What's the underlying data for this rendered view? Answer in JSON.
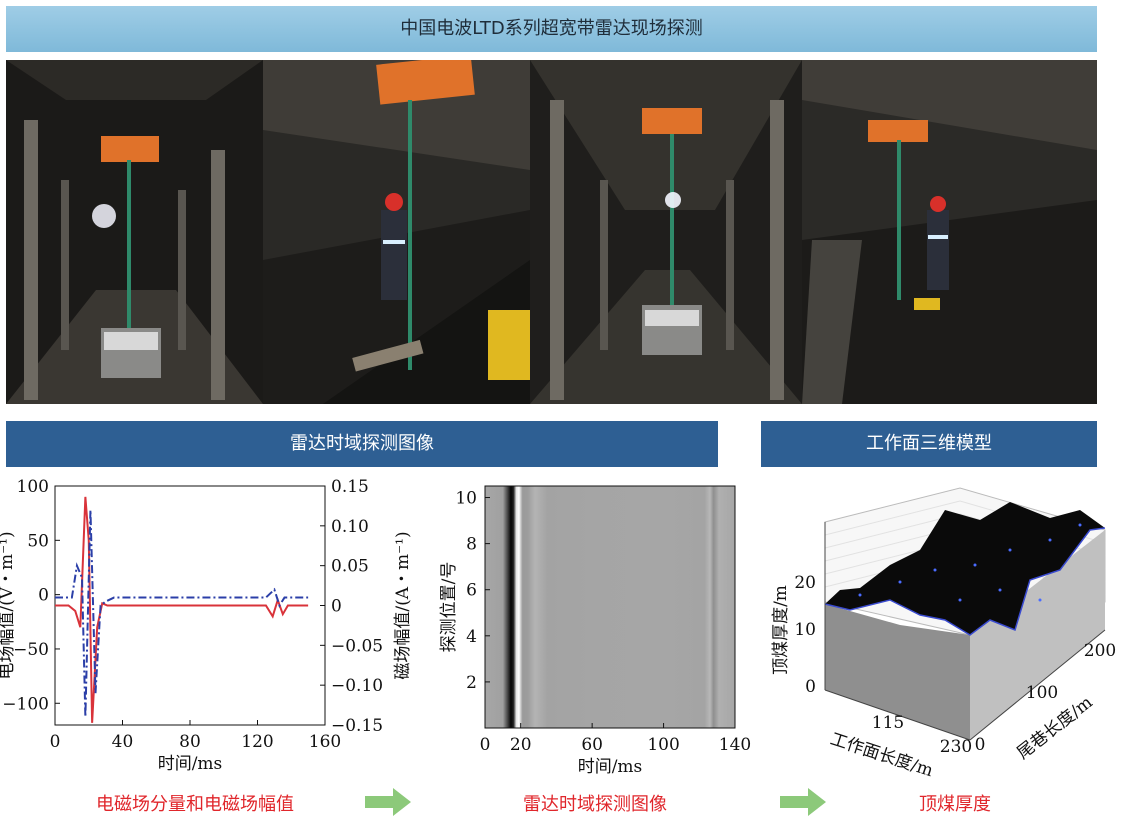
{
  "banner": {
    "title": "中国电波LTD系列超宽带雷达现场探测"
  },
  "photos": [
    {
      "name": "tunnel-photo-1"
    },
    {
      "name": "tunnel-photo-2"
    },
    {
      "name": "tunnel-photo-3"
    },
    {
      "name": "tunnel-photo-4"
    }
  ],
  "sections": {
    "radar_header": "雷达时域探测图像",
    "model_header": "工作面三维模型"
  },
  "captions": {
    "left": "电磁场分量和电磁场幅值",
    "middle": "雷达时域探测图像",
    "right": "顶煤厚度"
  },
  "colors": {
    "banner": "#8ec4e0",
    "section_header": "#2e5f93",
    "caption": "#e0262b",
    "arrow": "#8cc97a",
    "electric_line": "#d9333a",
    "magnetic_line": "#2b3fa8"
  },
  "chart_data": [
    {
      "type": "line",
      "title": "",
      "xlabel": "时间/ms",
      "ylabel": "电场幅值/(V・m⁻¹)",
      "ylabel_right": "磁场幅值/(A・m⁻¹)",
      "xlim": [
        0,
        160
      ],
      "ylim": [
        -120,
        100
      ],
      "ylim_right": [
        -0.15,
        0.15
      ],
      "xticks": [
        "0",
        "40",
        "80",
        "120",
        "160"
      ],
      "yticks": [
        "100",
        "50",
        "0",
        "−50",
        "−100"
      ],
      "yticks_right": [
        "0.15",
        "0.10",
        "0.05",
        "0",
        "−0.05",
        "−0.10",
        "−0.15"
      ],
      "series": [
        {
          "axis": "left",
          "style": "solid",
          "x": [
            0,
            8,
            12,
            15,
            18,
            20,
            22,
            25,
            28,
            31,
            35,
            60,
            100,
            125,
            129,
            132,
            135,
            138,
            150
          ],
          "y": [
            -10,
            -10,
            -15,
            -30,
            90,
            50,
            -118,
            -30,
            -8,
            -10,
            -10,
            -10,
            -10,
            -10,
            -20,
            -5,
            -18,
            -10,
            -10
          ]
        },
        {
          "axis": "right",
          "style": "dash-dot",
          "x": [
            0,
            10,
            13,
            16,
            18,
            21,
            24,
            27,
            30,
            35,
            60,
            125,
            130,
            133,
            136,
            150
          ],
          "y": [
            0.01,
            0.01,
            0.05,
            0.035,
            -0.14,
            0.12,
            -0.11,
            0.0,
            0.005,
            0.01,
            0.01,
            0.01,
            0.02,
            0.0,
            0.01,
            0.01
          ]
        }
      ]
    },
    {
      "type": "heatmap",
      "title": "",
      "xlabel": "时间/ms",
      "ylabel": "探测位置/号",
      "xlim": [
        0,
        140
      ],
      "ylim": [
        0,
        10.5
      ],
      "xticks": [
        "0",
        "20",
        "60",
        "100",
        "140"
      ],
      "yticks": [
        "10",
        "8",
        "6",
        "4",
        "2"
      ]
    },
    {
      "type": "surface",
      "title": "",
      "xlabel": "工作面长度/m",
      "ylabel": "尾巷长度/m",
      "zlabel": "顶煤厚度/m",
      "xticks": [
        "115",
        "230"
      ],
      "yticks": [
        "0",
        "100",
        "200"
      ],
      "zticks": [
        "0",
        "10",
        "20"
      ]
    }
  ]
}
